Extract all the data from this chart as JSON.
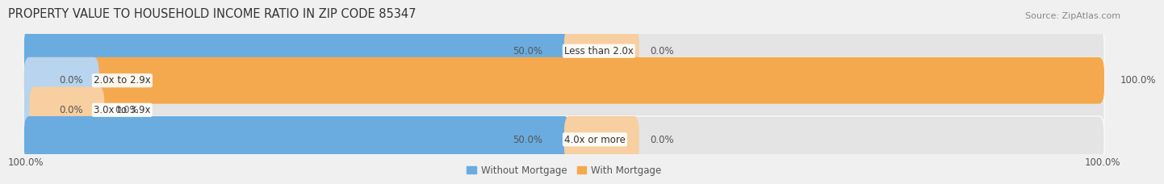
{
  "title": "PROPERTY VALUE TO HOUSEHOLD INCOME RATIO IN ZIP CODE 85347",
  "source": "Source: ZipAtlas.com",
  "categories": [
    "Less than 2.0x",
    "2.0x to 2.9x",
    "3.0x to 3.9x",
    "4.0x or more"
  ],
  "without_mortgage": [
    50.0,
    0.0,
    0.0,
    50.0
  ],
  "with_mortgage": [
    0.0,
    100.0,
    0.0,
    0.0
  ],
  "blue_color": "#6aace0",
  "blue_light_color": "#b8d4ee",
  "orange_color": "#f5a94e",
  "orange_light_color": "#f7cfa0",
  "bg_color": "#f0f0f0",
  "bar_bg_color": "#e4e4e4",
  "text_color": "#555555",
  "title_color": "#333333",
  "source_color": "#888888",
  "title_fontsize": 10.5,
  "label_fontsize": 8.5,
  "value_fontsize": 8.5,
  "source_fontsize": 8.0,
  "legend_fontsize": 8.5,
  "figsize": [
    14.06,
    2.33
  ],
  "dpi": 100
}
